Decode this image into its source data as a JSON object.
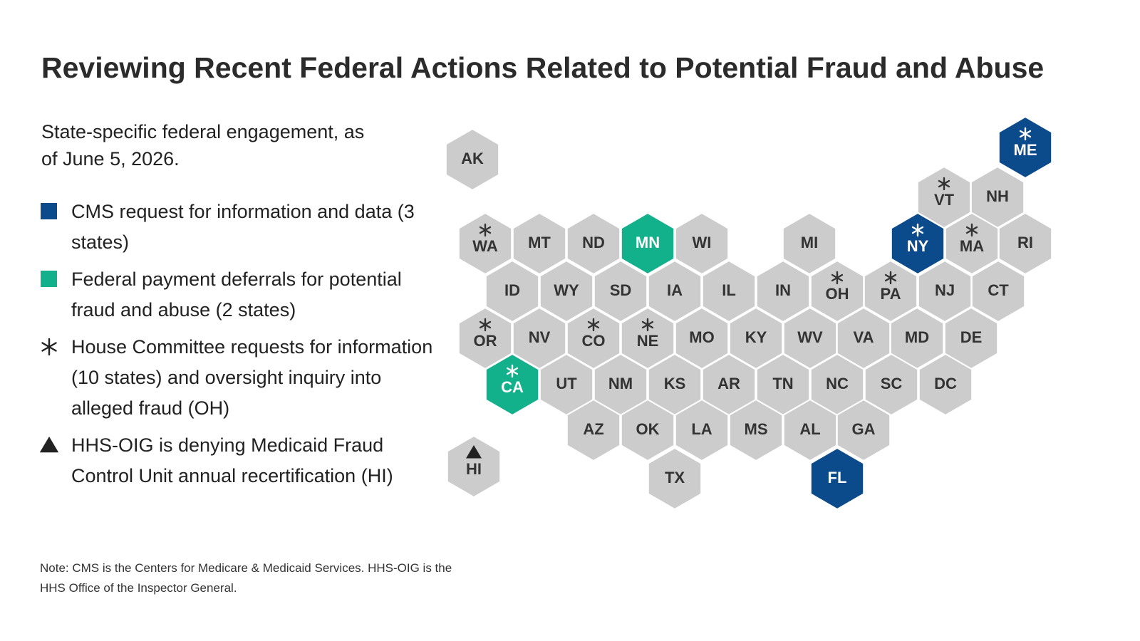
{
  "title": "Reviewing Recent Federal Actions Related to Potential Fraud and Abuse",
  "subtitle": "State-specific federal engagement, as of June 5, 2026.",
  "legend": [
    {
      "symbol": "square",
      "color": "#0b4a8b",
      "label": "CMS request for information and data (3 states)"
    },
    {
      "symbol": "square",
      "color": "#13b08c",
      "label": "Federal payment deferrals for potential fraud and abuse (2 states)"
    },
    {
      "symbol": "asterisk",
      "color": "#222222",
      "label": "House Committee requests for information (10 states) and oversight inquiry into alleged fraud (OH)"
    },
    {
      "symbol": "triangle",
      "color": "#222222",
      "label": "HHS-OIG is denying Medicaid Fraud Control Unit annual recertification (HI)"
    }
  ],
  "note": "Note: CMS is the Centers for Medicare & Medicaid Services. HHS-OIG is the HHS Office of the Inspector General.",
  "default_color": "#cccccc",
  "states": [
    {
      "abbr": "AK"
    },
    {
      "abbr": "ME",
      "color": "#0b4a8b",
      "marker": "asterisk"
    },
    {
      "abbr": "VT",
      "marker": "asterisk"
    },
    {
      "abbr": "NH"
    },
    {
      "abbr": "WA",
      "marker": "asterisk"
    },
    {
      "abbr": "MT"
    },
    {
      "abbr": "ND"
    },
    {
      "abbr": "MN",
      "color": "#13b08c"
    },
    {
      "abbr": "WI"
    },
    {
      "abbr": "MI"
    },
    {
      "abbr": "NY",
      "color": "#0b4a8b",
      "marker": "asterisk"
    },
    {
      "abbr": "MA",
      "marker": "asterisk"
    },
    {
      "abbr": "RI"
    },
    {
      "abbr": "ID"
    },
    {
      "abbr": "WY"
    },
    {
      "abbr": "SD"
    },
    {
      "abbr": "IA"
    },
    {
      "abbr": "IL"
    },
    {
      "abbr": "IN"
    },
    {
      "abbr": "OH",
      "marker": "asterisk"
    },
    {
      "abbr": "PA",
      "marker": "asterisk"
    },
    {
      "abbr": "NJ"
    },
    {
      "abbr": "CT"
    },
    {
      "abbr": "OR",
      "marker": "asterisk"
    },
    {
      "abbr": "NV"
    },
    {
      "abbr": "CO",
      "marker": "asterisk"
    },
    {
      "abbr": "NE",
      "marker": "asterisk"
    },
    {
      "abbr": "MO"
    },
    {
      "abbr": "KY"
    },
    {
      "abbr": "WV"
    },
    {
      "abbr": "VA"
    },
    {
      "abbr": "MD"
    },
    {
      "abbr": "DE"
    },
    {
      "abbr": "CA",
      "color": "#13b08c",
      "marker": "asterisk"
    },
    {
      "abbr": "UT"
    },
    {
      "abbr": "NM"
    },
    {
      "abbr": "KS"
    },
    {
      "abbr": "AR"
    },
    {
      "abbr": "TN"
    },
    {
      "abbr": "NC"
    },
    {
      "abbr": "SC"
    },
    {
      "abbr": "DC"
    },
    {
      "abbr": "AZ"
    },
    {
      "abbr": "OK"
    },
    {
      "abbr": "LA"
    },
    {
      "abbr": "MS"
    },
    {
      "abbr": "AL"
    },
    {
      "abbr": "GA"
    },
    {
      "abbr": "TX"
    },
    {
      "abbr": "FL",
      "color": "#0b4a8b"
    },
    {
      "abbr": "HI",
      "marker": "triangle"
    }
  ]
}
